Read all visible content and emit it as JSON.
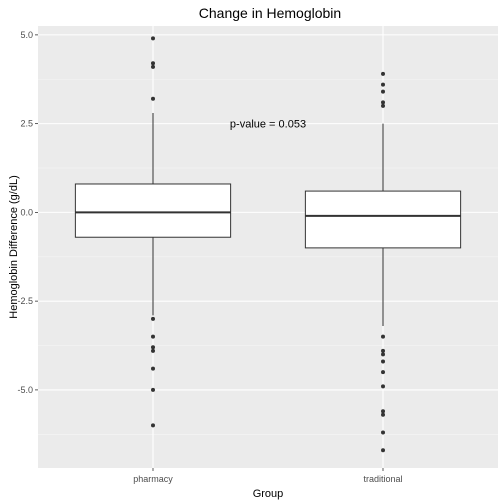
{
  "chart_data": {
    "type": "box",
    "title": "Change in Hemoglobin",
    "xlabel": "Group",
    "ylabel": "Hemoglobin Difference (g/dL)",
    "categories": [
      "pharmacy",
      "traditional"
    ],
    "ylim": [
      -7.2,
      5.25
    ],
    "yticks": [
      5.0,
      2.5,
      0.0,
      -2.5,
      -5.0
    ],
    "ytick_labels": [
      "5.0",
      "2.5",
      "0.0",
      "-2.5",
      "-5.0"
    ],
    "grid": true,
    "boxes": [
      {
        "name": "pharmacy",
        "q1": -0.7,
        "median": 0.0,
        "q3": 0.8,
        "whisker_low": -2.9,
        "whisker_high": 2.8,
        "outliers": [
          4.9,
          4.2,
          4.1,
          3.2,
          -3.0,
          -3.5,
          -3.8,
          -3.9,
          -4.4,
          -5.0,
          -6.0
        ]
      },
      {
        "name": "traditional",
        "q1": -1.0,
        "median": -0.1,
        "q3": 0.6,
        "whisker_low": -3.2,
        "whisker_high": 2.5,
        "outliers": [
          3.9,
          3.6,
          3.4,
          3.1,
          3.0,
          -3.5,
          -3.9,
          -4.0,
          -4.2,
          -4.5,
          -4.9,
          -5.6,
          -5.7,
          -6.2,
          -6.7
        ]
      }
    ],
    "annotations": [
      {
        "text": "p-value = 0.053",
        "x": 1.5,
        "y": 2.5
      }
    ]
  }
}
